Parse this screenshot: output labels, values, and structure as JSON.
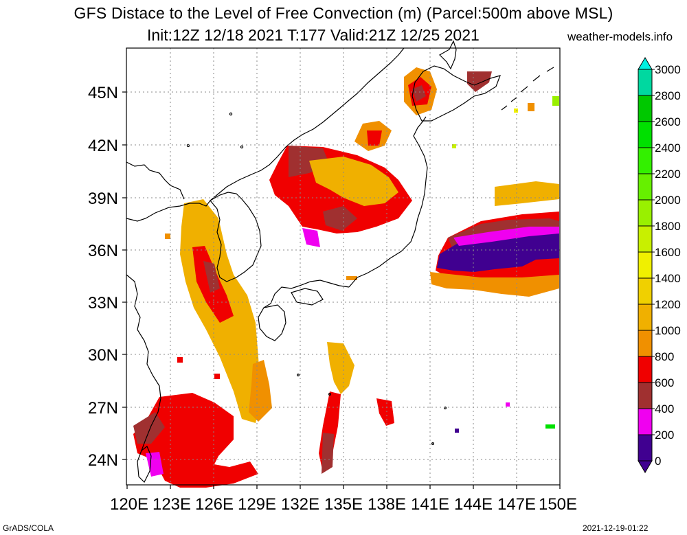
{
  "header": {
    "title_line1": "GFS Distace to the Level of Free Convection (m) (Parcel:500m above MSL)",
    "title_line2": "Init:12Z 12/18 2021 T:177 Valid:21Z 12/25 2021",
    "site": "weather-models.info"
  },
  "footer": {
    "left": "GrADS/COLA",
    "right": "2021-12-19-01:22"
  },
  "map": {
    "region": "East Asia / Japan",
    "lon_range": [
      120,
      150
    ],
    "lat_range": [
      22.5,
      47.5
    ],
    "lat_ticks": [
      "45N",
      "42N",
      "39N",
      "36N",
      "33N",
      "30N",
      "27N",
      "24N"
    ],
    "lon_ticks": [
      "120E",
      "123E",
      "126E",
      "129E",
      "132E",
      "135E",
      "138E",
      "141E",
      "144E",
      "147E",
      "150E"
    ]
  },
  "colorbar": {
    "labels": [
      "3000",
      "2800",
      "2600",
      "2400",
      "2200",
      "2000",
      "1800",
      "1600",
      "1400",
      "1200",
      "1000",
      "800",
      "600",
      "400",
      "200",
      "0"
    ],
    "colors": [
      "#00f0e0",
      "#00d8a0",
      "#00c800",
      "#00e000",
      "#33f000",
      "#66f000",
      "#99f000",
      "#c8f000",
      "#f0f000",
      "#f0d000",
      "#f0b000",
      "#f09000",
      "#f00000",
      "#a03030",
      "#f000f0",
      "#400090"
    ]
  }
}
